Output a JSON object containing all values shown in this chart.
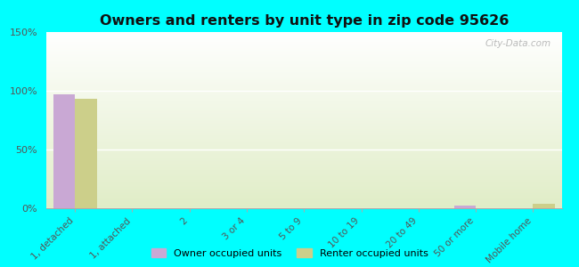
{
  "title": "Owners and renters by unit type in zip code 95626",
  "categories": [
    "1, detached",
    "1, attached",
    "2",
    "3 or 4",
    "5 to 9",
    "10 to 19",
    "20 to 49",
    "50 or more",
    "Mobile home"
  ],
  "owner_values": [
    97,
    0,
    0,
    0,
    0,
    0,
    0,
    2,
    0
  ],
  "renter_values": [
    93,
    0,
    0,
    0,
    0,
    0,
    0,
    0,
    4
  ],
  "owner_color": "#c9a8d4",
  "renter_color": "#cccf8a",
  "fig_bg": "#00ffff",
  "ylim": [
    0,
    150
  ],
  "yticks": [
    0,
    50,
    100,
    150
  ],
  "ytick_labels": [
    "0%",
    "50%",
    "100%",
    "150%"
  ],
  "bar_width": 0.38,
  "watermark": "City-Data.com",
  "legend_labels": [
    "Owner occupied units",
    "Renter occupied units"
  ]
}
